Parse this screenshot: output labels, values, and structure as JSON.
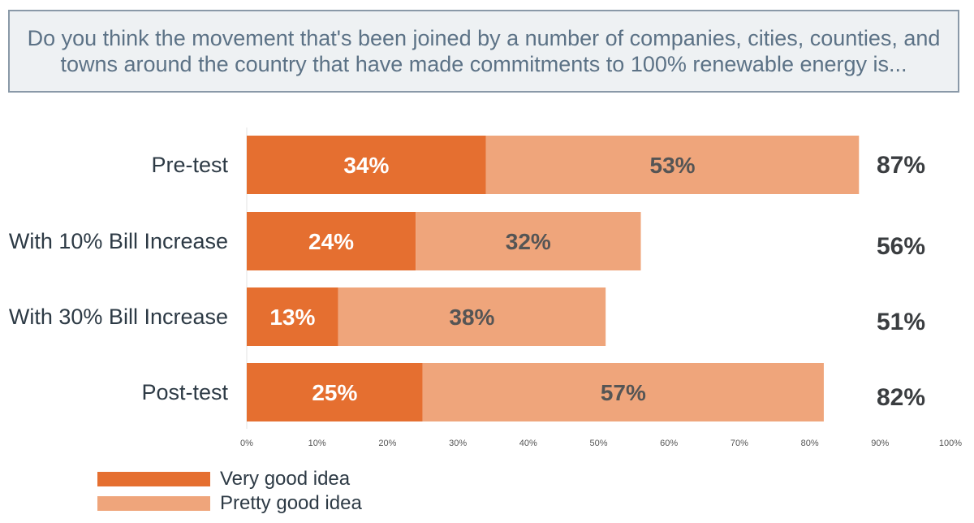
{
  "title": "Do you think the movement that's been joined by a number of companies, cities, counties, and towns around the country that have made commitments to 100% renewable energy is...",
  "chart_data": {
    "type": "bar",
    "orientation": "horizontal",
    "stacked": true,
    "categories": [
      "Pre-test",
      "With 10% Bill Increase",
      "With 30% Bill Increase",
      "Post-test"
    ],
    "series": [
      {
        "name": "Very good idea",
        "values": [
          34,
          24,
          13,
          25
        ],
        "labels": [
          "34%",
          "24%",
          "13%",
          "25%"
        ],
        "color": "#e56f30"
      },
      {
        "name": "Pretty good idea",
        "values": [
          53,
          32,
          38,
          57
        ],
        "labels": [
          "53%",
          "32%",
          "38%",
          "57%"
        ],
        "color": "#efa57b"
      }
    ],
    "totals": [
      87,
      56,
      51,
      82
    ],
    "total_labels": [
      "87%",
      "56%",
      "51%",
      "82%"
    ],
    "x_ticks": [
      0,
      10,
      20,
      30,
      40,
      50,
      60,
      70,
      80,
      90,
      100
    ],
    "x_tick_labels": [
      "0%",
      "10%",
      "20%",
      "30%",
      "40%",
      "50%",
      "60%",
      "70%",
      "80%",
      "90%",
      "100%"
    ],
    "xlim": [
      0,
      100
    ],
    "legend_position": "bottom-left"
  },
  "colors": {
    "very_good": "#e56f30",
    "pretty_good": "#efa57b",
    "text_dark": "#2d3a45",
    "total_text": "#3a3d40",
    "segment_label_light": "#ffffff",
    "segment_label_dark": "#555555"
  }
}
